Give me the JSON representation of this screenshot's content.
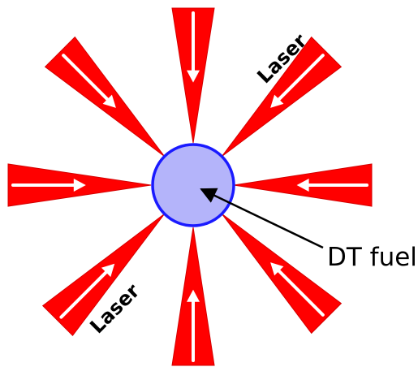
{
  "labels": {
    "laser_upper": "Laser",
    "laser_lower": "Laser",
    "fuel": "DT fuel"
  },
  "colors": {
    "beam": "#ff0000",
    "beam_edge": "#d40000",
    "arrow": "#ffffff",
    "fuel_fill": "#b4b4fa",
    "fuel_stroke": "#1a1aff",
    "pointer": "#000000",
    "text": "#000000"
  },
  "beams": [
    {
      "name": "beam-top",
      "direction": "downward",
      "icon": "arrow-down-icon"
    },
    {
      "name": "beam-top-right",
      "direction": "down-left",
      "icon": "arrow-down-left-icon"
    },
    {
      "name": "beam-right",
      "direction": "leftward",
      "icon": "arrow-left-icon"
    },
    {
      "name": "beam-bottom-right",
      "direction": "up-left",
      "icon": "arrow-up-left-icon"
    },
    {
      "name": "beam-bottom",
      "direction": "upward",
      "icon": "arrow-up-icon"
    },
    {
      "name": "beam-bottom-left",
      "direction": "up-right",
      "icon": "arrow-up-right-icon"
    },
    {
      "name": "beam-left",
      "direction": "rightward",
      "icon": "arrow-right-icon"
    },
    {
      "name": "beam-top-left",
      "direction": "down-right",
      "icon": "arrow-down-right-icon"
    }
  ]
}
